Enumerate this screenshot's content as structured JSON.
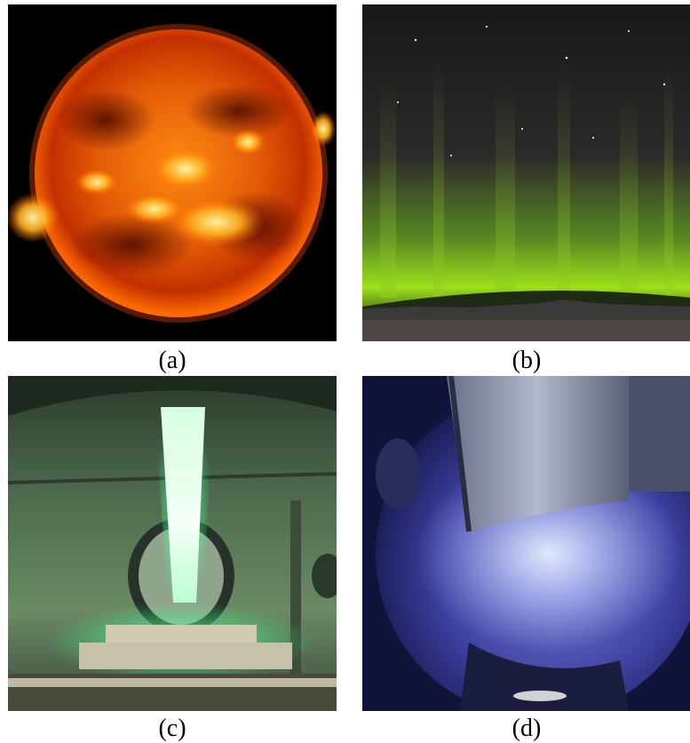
{
  "figure": {
    "panels": [
      {
        "id": "a",
        "label": "(a)",
        "subject": "sun-icon",
        "colors": {
          "core": "#ff9a1a",
          "rim": "#c62a00",
          "bg": "#000000"
        }
      },
      {
        "id": "b",
        "label": "(b)",
        "subject": "aurora-icon",
        "colors": {
          "sky": "#1f1c1e",
          "glow": "#8fd21c",
          "ground": "#4a4240"
        }
      },
      {
        "id": "c",
        "label": "(c)",
        "subject": "plasma-jet-icon",
        "colors": {
          "chamber": "#5f7d5a",
          "jet": "#eaffef",
          "glow": "#33ff88"
        }
      },
      {
        "id": "d",
        "label": "(d)",
        "subject": "plasma-chamber-icon",
        "colors": {
          "chamber": "#2c2f7e",
          "glow": "#c9d8ff",
          "metal": "#8a8fa6"
        }
      }
    ]
  }
}
